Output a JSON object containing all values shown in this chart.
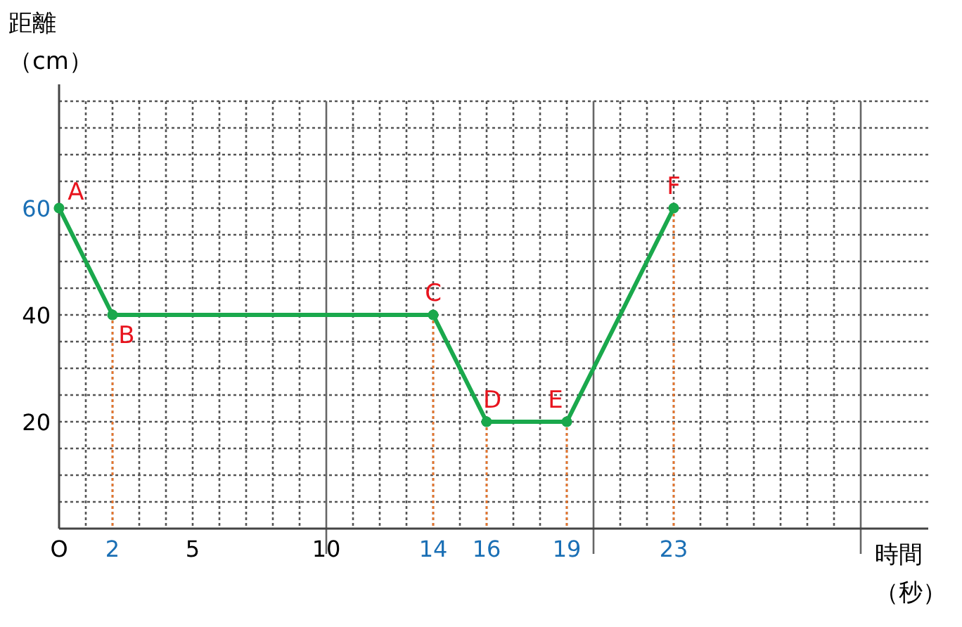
{
  "chart_data": {
    "type": "line",
    "xlabel": "時間（秒）",
    "ylabel": "距離（cm）",
    "x": [
      0,
      2,
      14,
      16,
      19,
      23
    ],
    "series": [
      {
        "color": "#1aa84c",
        "values": [
          60,
          40,
          40,
          20,
          20,
          60
        ]
      }
    ],
    "marker": "circle",
    "line_style": "solid",
    "grid": true,
    "xlim": [
      0,
      30
    ],
    "ylim": [
      0,
      80
    ],
    "xticks": [
      {
        "value": 0,
        "label": "O"
      },
      {
        "value": 1,
        "label": null
      },
      2,
      {
        "value": 3,
        "label": null
      },
      {
        "value": 4,
        "label": null
      },
      5,
      {
        "value": 6,
        "label": null
      },
      {
        "value": 7,
        "label": null
      },
      {
        "value": 8,
        "label": null
      },
      {
        "value": 9,
        "label": null
      },
      10,
      {
        "value": 11,
        "label": null
      },
      {
        "value": 12,
        "label": null
      },
      {
        "value": 13,
        "label": null
      },
      14,
      {
        "value": 15,
        "label": null
      },
      16,
      {
        "value": 17,
        "label": null
      },
      {
        "value": 18,
        "label": null
      },
      19,
      {
        "value": 20,
        "label": null
      },
      {
        "value": 21,
        "label": null
      },
      {
        "value": 22,
        "label": null
      },
      23,
      {
        "value": 24,
        "label": null
      },
      {
        "value": 25,
        "label": null
      },
      {
        "value": 26,
        "label": null
      },
      {
        "value": 27,
        "label": null
      },
      {
        "value": 28,
        "label": null
      },
      {
        "value": 29,
        "label": null
      },
      {
        "value": 30,
        "label": null
      }
    ],
    "yticks": [
      {
        "value": 0,
        "label": null
      },
      {
        "value": 5,
        "label": null
      },
      {
        "value": 10,
        "label": null
      },
      {
        "value": 15,
        "label": null
      },
      20,
      {
        "value": 25,
        "label": null
      },
      {
        "value": 30,
        "label": null
      },
      {
        "value": 35,
        "label": null
      },
      40,
      {
        "value": 45,
        "label": null
      },
      {
        "value": 50,
        "label": null
      },
      {
        "value": 55,
        "label": null
      },
      60,
      {
        "value": 65,
        "label": null
      },
      {
        "value": 70,
        "label": null
      },
      {
        "value": 75,
        "label": null
      },
      {
        "value": 80,
        "label": null
      }
    ],
    "ref_lines": [
      {
        "axis": "x",
        "value": 2,
        "label": null,
        "color": "#e8742a",
        "line_style": "dotted"
      },
      {
        "axis": "x",
        "value": 14,
        "label": null,
        "color": "#e8742a",
        "line_style": "dotted"
      },
      {
        "axis": "x",
        "value": 16,
        "label": null,
        "color": "#e8742a",
        "line_style": "dotted"
      },
      {
        "axis": "x",
        "value": 19,
        "label": null,
        "color": "#e8742a",
        "line_style": "dotted"
      },
      {
        "axis": "x",
        "value": 23,
        "label": null,
        "color": "#e8742a",
        "line_style": "dotted"
      }
    ],
    "annotations": [
      {
        "text": "A",
        "x": 0,
        "y": 60
      },
      {
        "text": "B",
        "x": 2,
        "y": 40
      },
      {
        "text": "C",
        "x": 14,
        "y": 40
      },
      {
        "text": "D",
        "x": 16,
        "y": 20
      },
      {
        "text": "E",
        "x": 19,
        "y": 20
      },
      {
        "text": "F",
        "x": 23,
        "y": 60
      }
    ]
  }
}
